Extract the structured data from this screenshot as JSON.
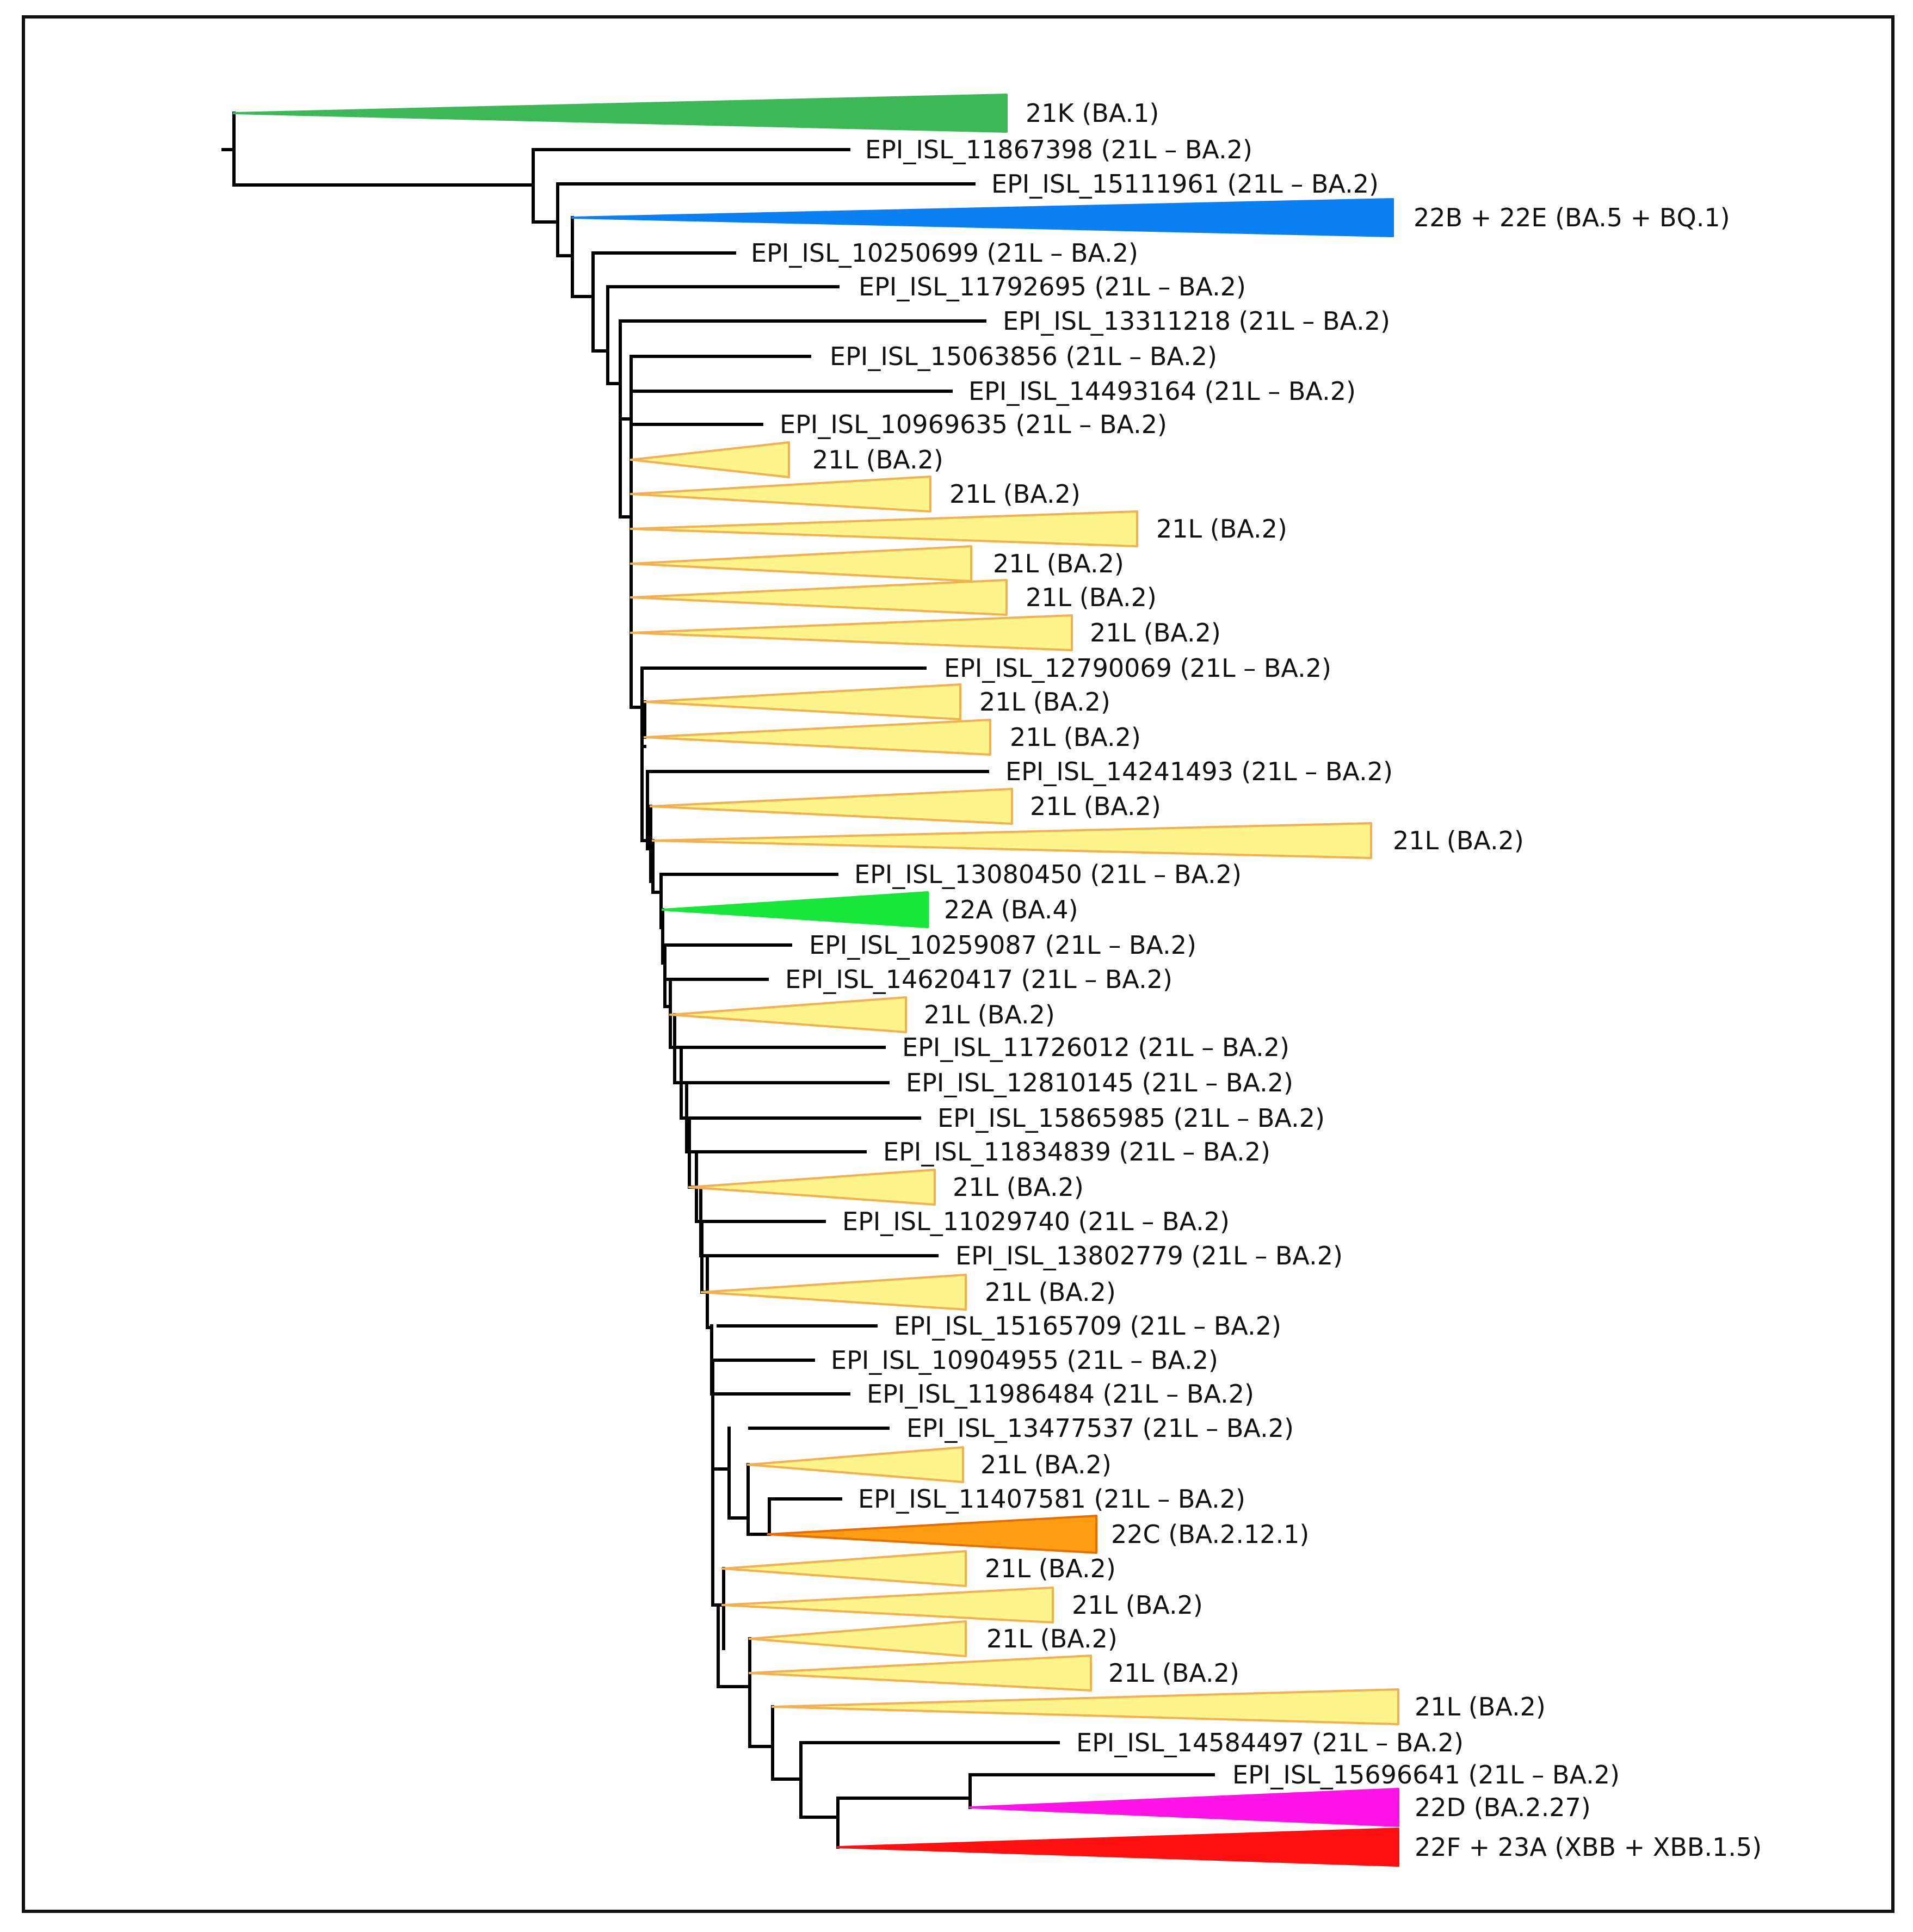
{
  "colors": {
    "branch": "#000000",
    "ba1": "#3cb857",
    "ba5_bq1": "#0b80f2",
    "ba2_fill": "#fff48c",
    "ba2_edge": "#f2b050",
    "ba4": "#18e63a",
    "ba2_12_1_fill": "#ff9e12",
    "ba2_12_1_edge": "#e86e00",
    "ba2_27": "#ff14e8",
    "xbb": "#ff1010"
  },
  "leaves": [
    {
      "label": "21K (BA.1)",
      "kind": "clade",
      "color": "ba1"
    },
    {
      "label": "EPI_ISL_11867398 (21L – BA.2)",
      "kind": "seq"
    },
    {
      "label": "EPI_ISL_15111961 (21L – BA.2)",
      "kind": "seq"
    },
    {
      "label": "22B + 22E (BA.5 + BQ.1)",
      "kind": "clade",
      "color": "ba5_bq1"
    },
    {
      "label": "EPI_ISL_10250699 (21L – BA.2)",
      "kind": "seq"
    },
    {
      "label": "EPI_ISL_11792695 (21L – BA.2)",
      "kind": "seq"
    },
    {
      "label": "EPI_ISL_13311218 (21L – BA.2)",
      "kind": "seq"
    },
    {
      "label": "EPI_ISL_15063856 (21L – BA.2)",
      "kind": "seq"
    },
    {
      "label": "EPI_ISL_14493164 (21L – BA.2)",
      "kind": "seq"
    },
    {
      "label": "EPI_ISL_10969635 (21L – BA.2)",
      "kind": "seq"
    },
    {
      "label": "21L (BA.2)",
      "kind": "clade",
      "color": "ba2"
    },
    {
      "label": "21L (BA.2)",
      "kind": "clade",
      "color": "ba2"
    },
    {
      "label": "21L (BA.2)",
      "kind": "clade",
      "color": "ba2"
    },
    {
      "label": "21L (BA.2)",
      "kind": "clade",
      "color": "ba2"
    },
    {
      "label": "21L (BA.2)",
      "kind": "clade",
      "color": "ba2"
    },
    {
      "label": "21L (BA.2)",
      "kind": "clade",
      "color": "ba2"
    },
    {
      "label": "EPI_ISL_12790069 (21L – BA.2)",
      "kind": "seq"
    },
    {
      "label": "21L (BA.2)",
      "kind": "clade",
      "color": "ba2"
    },
    {
      "label": "21L (BA.2)",
      "kind": "clade",
      "color": "ba2"
    },
    {
      "label": "EPI_ISL_14241493 (21L – BA.2)",
      "kind": "seq"
    },
    {
      "label": "21L (BA.2)",
      "kind": "clade",
      "color": "ba2"
    },
    {
      "label": "21L (BA.2)",
      "kind": "clade",
      "color": "ba2"
    },
    {
      "label": "EPI_ISL_13080450 (21L – BA.2)",
      "kind": "seq"
    },
    {
      "label": "22A (BA.4)",
      "kind": "clade",
      "color": "ba4"
    },
    {
      "label": "EPI_ISL_10259087 (21L – BA.2)",
      "kind": "seq"
    },
    {
      "label": "EPI_ISL_14620417 (21L – BA.2)",
      "kind": "seq"
    },
    {
      "label": "21L (BA.2)",
      "kind": "clade",
      "color": "ba2"
    },
    {
      "label": "EPI_ISL_11726012 (21L – BA.2)",
      "kind": "seq"
    },
    {
      "label": "EPI_ISL_12810145 (21L – BA.2)",
      "kind": "seq"
    },
    {
      "label": "EPI_ISL_15865985 (21L – BA.2)",
      "kind": "seq"
    },
    {
      "label": "EPI_ISL_11834839 (21L – BA.2)",
      "kind": "seq"
    },
    {
      "label": "21L (BA.2)",
      "kind": "clade",
      "color": "ba2"
    },
    {
      "label": "EPI_ISL_11029740 (21L – BA.2)",
      "kind": "seq"
    },
    {
      "label": "EPI_ISL_13802779 (21L – BA.2)",
      "kind": "seq"
    },
    {
      "label": "21L (BA.2)",
      "kind": "clade",
      "color": "ba2"
    },
    {
      "label": "EPI_ISL_15165709 (21L – BA.2)",
      "kind": "seq"
    },
    {
      "label": "EPI_ISL_10904955 (21L – BA.2)",
      "kind": "seq"
    },
    {
      "label": "EPI_ISL_11986484 (21L – BA.2)",
      "kind": "seq"
    },
    {
      "label": "EPI_ISL_13477537 (21L – BA.2)",
      "kind": "seq"
    },
    {
      "label": "21L (BA.2)",
      "kind": "clade",
      "color": "ba2"
    },
    {
      "label": "EPI_ISL_11407581 (21L – BA.2)",
      "kind": "seq"
    },
    {
      "label": "22C (BA.2.12.1)",
      "kind": "clade",
      "color": "ba2_12_1"
    },
    {
      "label": "21L (BA.2)",
      "kind": "clade",
      "color": "ba2"
    },
    {
      "label": "21L (BA.2)",
      "kind": "clade",
      "color": "ba2"
    },
    {
      "label": "21L (BA.2)",
      "kind": "clade",
      "color": "ba2"
    },
    {
      "label": "21L (BA.2)",
      "kind": "clade",
      "color": "ba2"
    },
    {
      "label": "21L (BA.2)",
      "kind": "clade",
      "color": "ba2"
    },
    {
      "label": "EPI_ISL_14584497 (21L – BA.2)",
      "kind": "seq"
    },
    {
      "label": "EPI_ISL_15696641 (21L – BA.2)",
      "kind": "seq"
    },
    {
      "label": "22D (BA.2.27)",
      "kind": "clade",
      "color": "ba2_27"
    },
    {
      "label": "22F + 23A (XBB  + XBB.1.5)",
      "kind": "clade",
      "color": "xbb"
    }
  ]
}
